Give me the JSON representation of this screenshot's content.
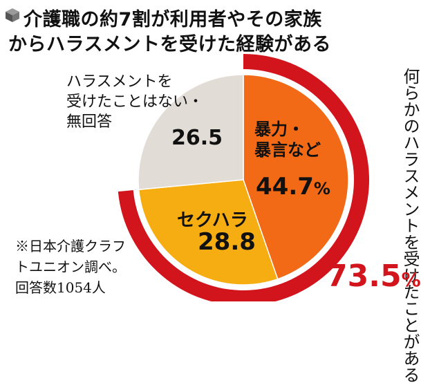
{
  "title": {
    "line1": "介護職の約7割が利用者やその家族",
    "line2": "からハラスメントを受けた経験がある"
  },
  "note": {
    "line1": "※日本介護クラフ",
    "line2": "トユニオン調べ。",
    "line3": "回答数1054人"
  },
  "experienced_label": "何らかのハラスメントを受けたことがある",
  "experienced_total": "73.5",
  "colors": {
    "violence": "#f26a16",
    "sekuhara": "#f6ad12",
    "none": "#e2dcd6",
    "ring": "#d2151c"
  },
  "chart_data": {
    "type": "pie",
    "slices": [
      {
        "label": "暴力・暴言など",
        "value": 44.7
      },
      {
        "label": "セクハラ",
        "value": 28.8
      },
      {
        "label": "ハラスメントを受けたことはない・無回答",
        "value": 26.5
      }
    ],
    "slice_labels": {
      "violence": [
        "暴力・",
        "暴言など"
      ],
      "none": [
        "ハラスメントを",
        "受けたことはない・",
        "無回答"
      ]
    },
    "value_labels": {
      "violence": "44.7",
      "sekuhara": "28.8",
      "none": "26.5"
    },
    "unit": "%",
    "start_angle_deg": 0,
    "direction": "clockwise"
  }
}
